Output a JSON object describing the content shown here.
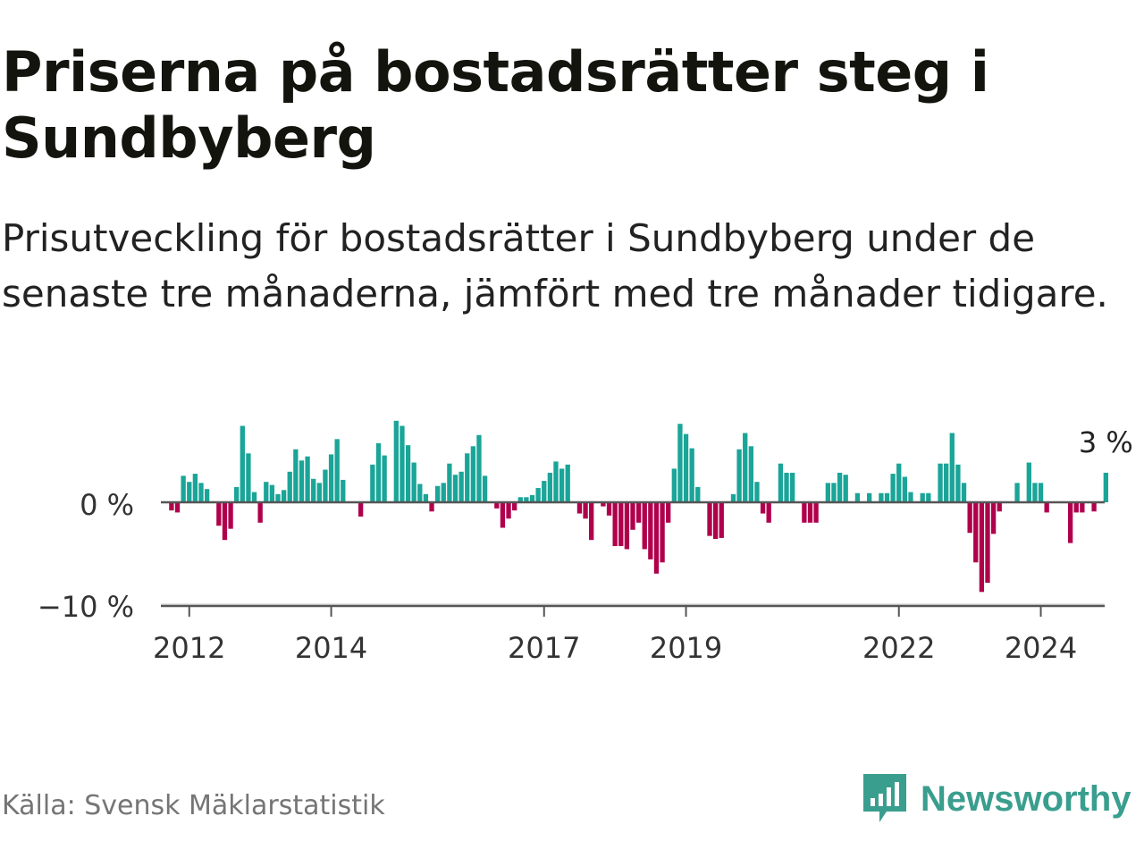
{
  "title": "Priserna på bostadsrätter steg i Sundbyberg",
  "subtitle": "Prisutveckling för bostadsrätter i Sundbyberg under de senaste tre månaderna, jämfört med tre månader tidigare.",
  "source": "Källa: Svensk Mäklarstatistik",
  "brand": {
    "name": "Newsworthy",
    "logo_icon": "bar-chart-speech-bubble-icon"
  },
  "colors": {
    "positive": "#1aa598",
    "negative": "#b0004c",
    "axis": "#555555",
    "logo": "#3a9e8e"
  },
  "chart_data": {
    "type": "bar",
    "title": "Priserna på bostadsrätter steg i Sundbyberg",
    "xlabel": "",
    "ylabel": "",
    "x_start": {
      "year": 2011,
      "month": 10
    },
    "x_step": "month",
    "xlim": [
      2011.6,
      2024.9
    ],
    "ylim": [
      -10,
      8
    ],
    "y_ticks": [
      {
        "value": 0,
        "label": "0 %"
      },
      {
        "value": -10,
        "label": "−10 %"
      }
    ],
    "x_ticks": [
      {
        "value": 2012,
        "label": "2012"
      },
      {
        "value": 2014,
        "label": "2014"
      },
      {
        "value": 2017,
        "label": "2017"
      },
      {
        "value": 2019,
        "label": "2019"
      },
      {
        "value": 2022,
        "label": "2022"
      },
      {
        "value": 2024,
        "label": "2024"
      }
    ],
    "last_value_label": "3 %",
    "values": [
      -0.8,
      -1.0,
      2.6,
      2.0,
      2.8,
      1.9,
      1.3,
      0.1,
      -2.3,
      -3.7,
      -2.6,
      1.5,
      7.5,
      4.8,
      1.0,
      -2.0,
      2.0,
      1.7,
      0.8,
      1.2,
      3.0,
      5.2,
      4.1,
      4.5,
      2.3,
      1.9,
      3.2,
      4.7,
      6.2,
      2.2,
      0,
      0,
      -1.4,
      0,
      3.7,
      5.8,
      4.6,
      0,
      8.0,
      7.5,
      5.6,
      3.9,
      1.8,
      0.8,
      -0.9,
      1.6,
      1.9,
      3.8,
      2.7,
      3.0,
      4.8,
      5.5,
      6.6,
      2.6,
      0,
      -0.6,
      -2.5,
      -1.6,
      -0.8,
      0.5,
      0.5,
      0.7,
      1.4,
      2.1,
      2.9,
      4.0,
      3.3,
      3.7,
      0,
      -1.1,
      -1.6,
      -3.7,
      0,
      -0.4,
      -1.3,
      -4.3,
      -4.3,
      -4.6,
      -2.7,
      -2.0,
      -4.6,
      -5.6,
      -7.0,
      -5.9,
      -2.0,
      3.3,
      7.7,
      6.7,
      5.3,
      1.5,
      0,
      -3.3,
      -3.6,
      -3.5,
      0,
      0.8,
      5.2,
      6.8,
      5.5,
      2.0,
      -1.1,
      -2.0,
      0,
      3.8,
      2.9,
      2.9,
      0,
      -2.0,
      -2.0,
      -2.0,
      0,
      1.9,
      1.9,
      2.9,
      2.7,
      0,
      0.9,
      0,
      0.9,
      0,
      0.9,
      0.9,
      2.8,
      3.8,
      2.5,
      1.0,
      0,
      0.9,
      0.9,
      0,
      3.8,
      3.8,
      6.8,
      3.7,
      1.9,
      -3.0,
      -5.9,
      -8.8,
      -7.9,
      -3.1,
      -0.9,
      0,
      0,
      1.9,
      0,
      3.9,
      1.9,
      1.9,
      -1.0,
      0,
      0,
      0,
      -4.0,
      -1.0,
      -1.0,
      0,
      -0.9,
      0,
      2.9
    ]
  }
}
